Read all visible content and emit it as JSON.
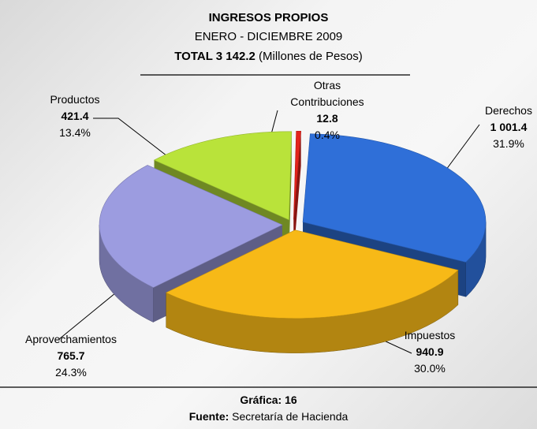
{
  "chart_data": {
    "type": "pie3d",
    "title": "INGRESOS PROPIOS",
    "subtitle": "ENERO - DICIEMBRE 2009",
    "total": "TOTAL 3 142.2",
    "unit": "(Millones de Pesos)",
    "categories": [
      "Derechos",
      "Impuestos",
      "Aprovechamientos",
      "Productos",
      "Otras Contribuciones"
    ],
    "values": [
      1001.4,
      940.9,
      765.7,
      421.4,
      12.8
    ],
    "value_labels": [
      "1 001.4",
      "940.9",
      "765.7",
      "421.4",
      "12.8"
    ],
    "percentages": [
      31.9,
      30.0,
      24.3,
      13.4,
      0.4
    ],
    "percentage_labels": [
      "31.9%",
      "30.0%",
      "24.3%",
      "13.4%",
      "0.4%"
    ],
    "colors": [
      "#2f6fd8",
      "#f7b917",
      "#9c9ce0",
      "#b9e33a",
      "#e3231c"
    ],
    "figure_label": "Gráfica: 16",
    "source_label": "Fuente:",
    "source": "Secretaría de Hacienda"
  }
}
